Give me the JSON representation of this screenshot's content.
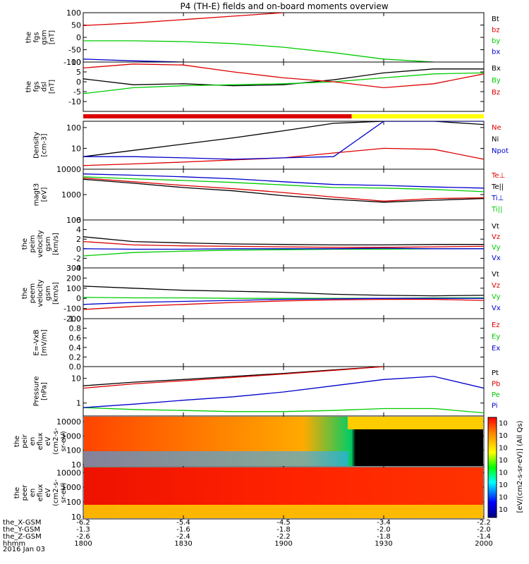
{
  "title": "P4 (TH-E) fields and on-board moments overview",
  "xaxis": {
    "ticks": [
      "1800",
      "1830",
      "1900",
      "1930",
      "2000"
    ],
    "orbit_rows": [
      {
        "label": "the_X-GSM",
        "values": [
          "-6.2",
          "-5.4",
          "-4.5",
          "-3.4",
          "-2.2"
        ]
      },
      {
        "label": "the_Y-GSM",
        "values": [
          "-1.3",
          "-1.6",
          "-1.8",
          "-2.0",
          "-2.0"
        ]
      },
      {
        "label": "the_Z-GSM",
        "values": [
          "-2.6",
          "-2.4",
          "-2.2",
          "-1.8",
          "-1.4"
        ]
      },
      {
        "label": "hhmm",
        "values": [
          "1800",
          "1830",
          "1900",
          "1930",
          "2000"
        ]
      }
    ],
    "date": "2016 Jan 03"
  },
  "colors": {
    "black": "#000000",
    "red": "#dd0000",
    "green": "#00cc00",
    "blue": "#0000cc",
    "yellow": "#ffff00"
  },
  "chart_data": [
    {
      "type": "line",
      "ylabel": [
        "the",
        "fgs",
        "gsm",
        "[nT]"
      ],
      "ylim": [
        -100,
        100
      ],
      "yticks": [
        "100",
        "50",
        "0",
        "-50",
        "-100"
      ],
      "legend": [
        "Bt",
        "bz",
        "by",
        "bx"
      ],
      "x": [
        1800,
        1815,
        1830,
        1845,
        1900,
        1915,
        1930,
        1945,
        2000
      ],
      "series": [
        {
          "name": "Bt",
          "values": [
            null,
            null,
            null,
            null,
            null,
            null,
            null,
            null,
            null
          ]
        },
        {
          "name": "bz",
          "values": [
            48,
            58,
            72,
            86,
            100,
            null,
            null,
            null,
            null
          ]
        },
        {
          "name": "by",
          "values": [
            -14,
            -14,
            -17,
            -25,
            -40,
            -62,
            -88,
            -100,
            null
          ]
        },
        {
          "name": "bx",
          "values": [
            -88,
            -95,
            -100,
            null,
            null,
            null,
            null,
            null,
            null
          ]
        }
      ]
    },
    {
      "type": "line",
      "ylabel": [
        "the",
        "fgs",
        "dsl",
        "[nT]"
      ],
      "ylim": [
        -15,
        10
      ],
      "yticks": [
        "10",
        "5",
        "0",
        "-5",
        "-10"
      ],
      "legend": [
        "Bx",
        "By",
        "Bz"
      ],
      "x": [
        1800,
        1815,
        1830,
        1845,
        1900,
        1915,
        1930,
        1945,
        2000
      ],
      "series": [
        {
          "name": "Bx",
          "values": [
            1.5,
            -1.5,
            -1.0,
            -2.0,
            -1.5,
            1.0,
            4.5,
            6.5,
            6.5
          ]
        },
        {
          "name": "By",
          "values": [
            -6,
            -3,
            -2,
            -1.5,
            -1,
            0,
            2,
            4,
            4.5
          ]
        },
        {
          "name": "Bz",
          "values": [
            7,
            9,
            8.5,
            5,
            2,
            0,
            -3,
            -1,
            4
          ]
        }
      ]
    },
    {
      "type": "line",
      "ylabel": [
        "Density",
        "[cm-3]"
      ],
      "yscale": "log",
      "ylim": [
        1,
        200
      ],
      "yticks": [
        "100",
        "10"
      ],
      "legend": [
        "Ne",
        "Ni",
        "Npot"
      ],
      "x": [
        1800,
        1815,
        1830,
        1845,
        1900,
        1915,
        1930,
        1945,
        2000
      ],
      "series": [
        {
          "name": "Ne",
          "values": [
            1.5,
            1.8,
            2.2,
            2.8,
            3.5,
            6,
            10,
            9,
            3
          ]
        },
        {
          "name": "Ni",
          "values": [
            4,
            8,
            16,
            32,
            70,
            160,
            200,
            200,
            140
          ]
        },
        {
          "name": "Npot",
          "values": [
            4,
            4,
            3.5,
            3,
            3.5,
            4,
            200,
            200,
            200
          ]
        }
      ]
    },
    {
      "type": "line",
      "ylabel": [
        "magt3",
        "[eV]"
      ],
      "yscale": "log",
      "ylim": [
        100,
        10000
      ],
      "yticks": [
        "10000",
        "1000",
        "100"
      ],
      "legend": [
        "Te⊥",
        "Te||",
        "Ti⊥",
        "Ti||"
      ],
      "x": [
        1800,
        1815,
        1830,
        1845,
        1900,
        1915,
        1930,
        1945,
        2000
      ],
      "series": [
        {
          "name": "Te⊥",
          "values": [
            4500,
            3200,
            2300,
            1700,
            1200,
            800,
            550,
            700,
            750
          ]
        },
        {
          "name": "Te||",
          "values": [
            4000,
            2800,
            1900,
            1400,
            900,
            650,
            500,
            600,
            700
          ]
        },
        {
          "name": "Ti⊥",
          "values": [
            6500,
            5800,
            5000,
            4200,
            3200,
            2500,
            2300,
            2000,
            1800
          ]
        },
        {
          "name": "Ti||",
          "values": [
            5000,
            4200,
            3600,
            3000,
            2400,
            1900,
            1800,
            1600,
            1300
          ]
        }
      ]
    },
    {
      "type": "line",
      "ylabel": [
        "the",
        "peim",
        "velocity",
        "gsm",
        "[km/s]"
      ],
      "ylim": [
        -4,
        6
      ],
      "yticks": [
        "6",
        "4",
        "2",
        "0",
        "-2",
        "-4"
      ],
      "legend": [
        "Vt",
        "Vz",
        "Vy",
        "Vx"
      ],
      "x": [
        1800,
        1815,
        1830,
        1845,
        1900,
        1915,
        1930,
        1945,
        2000
      ],
      "series": [
        {
          "name": "Vt",
          "values": [
            2.5,
            1.5,
            1.2,
            1.0,
            0.9,
            0.8,
            0.8,
            0.9,
            0.9
          ]
        },
        {
          "name": "Vz",
          "values": [
            1.5,
            0.8,
            0.6,
            0.5,
            0.4,
            0.3,
            0.3,
            0.4,
            0.5
          ]
        },
        {
          "name": "Vy",
          "values": [
            -1.5,
            -0.8,
            -0.5,
            -0.3,
            -0.2,
            -0.1,
            -0.1,
            0.0,
            0.0
          ]
        },
        {
          "name": "Vx",
          "values": [
            0.0,
            -0.1,
            -0.1,
            0.0,
            0.0,
            0.0,
            0.1,
            0.0,
            0.0
          ]
        }
      ]
    },
    {
      "type": "line",
      "ylabel": [
        "the",
        "peem",
        "velocity",
        "gsm",
        "[km/s]"
      ],
      "ylim": [
        -200,
        300
      ],
      "yticks": [
        "300",
        "200",
        "100",
        "0",
        "-100",
        "-200"
      ],
      "legend": [
        "Vt",
        "Vz",
        "Vy",
        "Vx"
      ],
      "x": [
        1800,
        1815,
        1830,
        1845,
        1900,
        1915,
        1930,
        1945,
        2000
      ],
      "series": [
        {
          "name": "Vt",
          "values": [
            120,
            100,
            80,
            70,
            60,
            40,
            30,
            25,
            30
          ]
        },
        {
          "name": "Vz",
          "values": [
            -110,
            -80,
            -60,
            -40,
            -25,
            -15,
            -10,
            -10,
            -20
          ]
        },
        {
          "name": "Vy",
          "values": [
            10,
            5,
            5,
            0,
            0,
            0,
            0,
            5,
            5
          ]
        },
        {
          "name": "Vx",
          "values": [
            -60,
            -40,
            -30,
            -20,
            -10,
            -5,
            0,
            0,
            0
          ]
        }
      ]
    },
    {
      "type": "line",
      "ylabel": [
        "E=-VxB",
        "[mV/m]"
      ],
      "ylim": [
        0,
        1
      ],
      "yticks": [
        "1.0",
        "0.8",
        "0.6",
        "0.4",
        "0.2",
        "0.0"
      ],
      "legend": [
        "Ez",
        "Ey",
        "Ex"
      ],
      "x": [],
      "series": []
    },
    {
      "type": "line",
      "ylabel": [
        "Pressure",
        "[nPa]"
      ],
      "yscale": "log",
      "ylim": [
        0.3,
        30
      ],
      "yticks": [
        "10",
        "1"
      ],
      "legend": [
        "Pt",
        "Pb",
        "Pe",
        "Pi"
      ],
      "x": [
        1800,
        1815,
        1830,
        1845,
        1900,
        1915,
        1930,
        1945,
        2000
      ],
      "series": [
        {
          "name": "Pt",
          "values": [
            5,
            7,
            9,
            12,
            16,
            22,
            30,
            null,
            null
          ]
        },
        {
          "name": "Pb",
          "values": [
            4,
            6,
            8,
            11,
            15,
            21,
            30,
            null,
            null
          ]
        },
        {
          "name": "Pe",
          "values": [
            0.65,
            0.55,
            0.5,
            0.45,
            0.45,
            0.5,
            0.6,
            0.6,
            0.4
          ]
        },
        {
          "name": "Pi",
          "values": [
            0.65,
            0.9,
            1.3,
            1.8,
            2.8,
            5,
            9,
            12,
            4
          ]
        }
      ]
    },
    {
      "type": "heatmap",
      "ylabel": [
        "the",
        "peir",
        "en",
        "eflux",
        "eV",
        "(cm2-s-",
        "sr-eV)"
      ],
      "yscale": "log",
      "ylim": [
        7,
        25000
      ],
      "yticks": [
        "10000",
        "1000",
        "100",
        "10"
      ]
    },
    {
      "type": "heatmap",
      "ylabel": [
        "the",
        "peer",
        "en",
        "eflux",
        "eV",
        "(cm2-s-",
        "sr-eV)"
      ],
      "yscale": "log",
      "ylim": [
        7,
        25000
      ],
      "yticks": [
        "10000",
        "1000",
        "100",
        "10"
      ]
    }
  ],
  "colorbar": {
    "ticks": [
      "10",
      "10",
      "10",
      "10",
      "10",
      "10",
      "10",
      "10"
    ],
    "label": "[eV/(cm2-s-sr-eV)] (All Qs)"
  }
}
